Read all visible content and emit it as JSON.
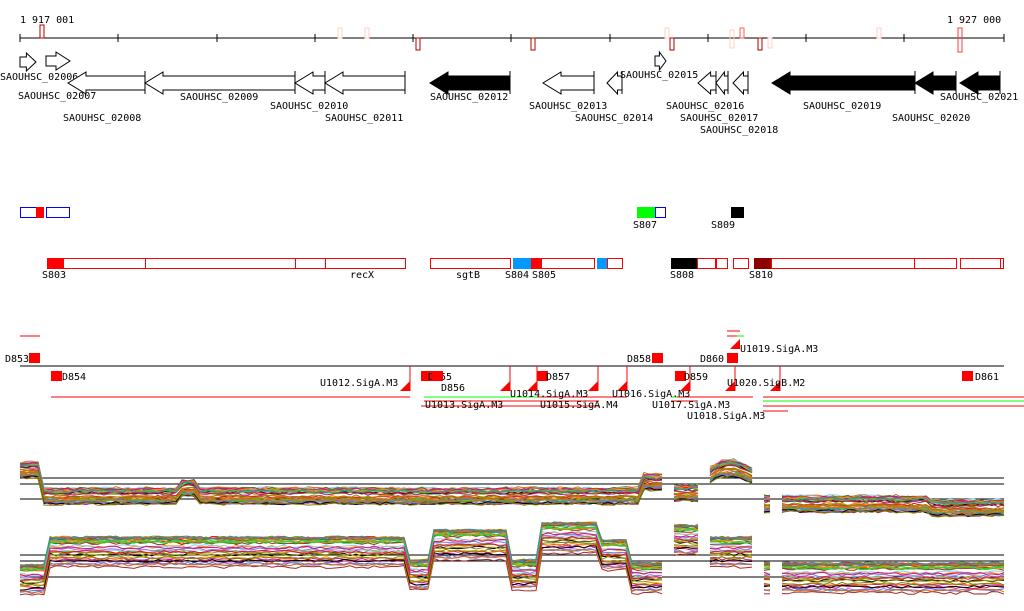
{
  "ruler": {
    "start_label": "1 917 001",
    "end_label": "1 927 000"
  },
  "genes": [
    {
      "name": "SAOUHSC_02006",
      "strand": "+",
      "fill": "white"
    },
    {
      "name": "SAOUHSC_02007",
      "strand": "+",
      "fill": "white"
    },
    {
      "name": "SAOUHSC_02008",
      "strand": "-",
      "fill": "white"
    },
    {
      "name": "SAOUHSC_02009",
      "strand": "-",
      "fill": "white"
    },
    {
      "name": "SAOUHSC_02010",
      "strand": "-",
      "fill": "white"
    },
    {
      "name": "SAOUHSC_02011",
      "strand": "-",
      "fill": "white"
    },
    {
      "name": "SAOUHSC_02012",
      "strand": "-",
      "fill": "black"
    },
    {
      "name": "SAOUHSC_02013",
      "strand": "-",
      "fill": "white"
    },
    {
      "name": "SAOUHSC_02014",
      "strand": "-",
      "fill": "white"
    },
    {
      "name": "SAOUHSC_02015",
      "strand": "+",
      "fill": "white"
    },
    {
      "name": "SAOUHSC_02016",
      "strand": "-",
      "fill": "white"
    },
    {
      "name": "SAOUHSC_02017",
      "strand": "-",
      "fill": "white"
    },
    {
      "name": "SAOUHSC_02018",
      "strand": "-",
      "fill": "white"
    },
    {
      "name": "SAOUHSC_02019",
      "strand": "-",
      "fill": "black"
    },
    {
      "name": "SAOUHSC_02020",
      "strand": "-",
      "fill": "black"
    },
    {
      "name": "SAOUHSC_02021",
      "strand": "-",
      "fill": "black"
    }
  ],
  "segments_top": [
    {
      "label": "S807"
    },
    {
      "label": "S809"
    }
  ],
  "segments_bottom": [
    {
      "label": "S803"
    },
    {
      "label": "recX"
    },
    {
      "label": "sgtB"
    },
    {
      "label": "S804"
    },
    {
      "label": "S805"
    },
    {
      "label": "S808"
    },
    {
      "label": "S810"
    }
  ],
  "features": [
    {
      "label": "D853"
    },
    {
      "label": "D854"
    },
    {
      "label": "D855"
    },
    {
      "label": "D856"
    },
    {
      "label": "D857"
    },
    {
      "label": "D858"
    },
    {
      "label": "D859"
    },
    {
      "label": "D860"
    },
    {
      "label": "D861"
    },
    {
      "label": "U1012.SigA.M3"
    },
    {
      "label": "U1013.SigA.M3"
    },
    {
      "label": "U1014.SigA.M3"
    },
    {
      "label": "U1015.SigA.M4"
    },
    {
      "label": "U1016.SigA.M3"
    },
    {
      "label": "U1017.SigA.M3"
    },
    {
      "label": "U1018.SigA.M3"
    },
    {
      "label": "U1019.SigA.M3"
    },
    {
      "label": "U1020.SigB.M2"
    }
  ],
  "colors": {
    "red": "#ff0000",
    "dark_red": "#8b0000",
    "blue": "#0000ff",
    "green": "#00ff00",
    "sky": "#0099ff"
  }
}
